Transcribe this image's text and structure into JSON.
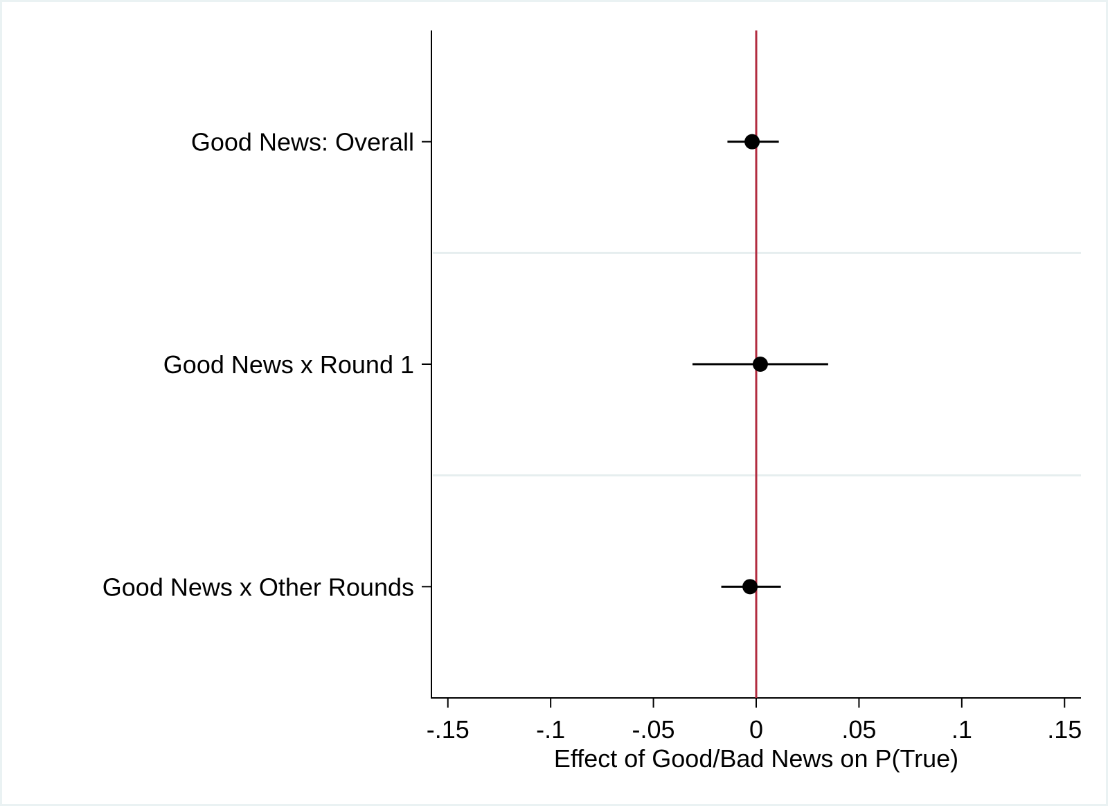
{
  "chart_data": {
    "type": "scatter",
    "title": "",
    "xlabel": "Effect of Good/Bad News on P(True)",
    "ylabel": "",
    "xlim": [
      -0.158,
      0.158
    ],
    "x_ticks": [
      {
        "value": -0.15,
        "label": "-.15"
      },
      {
        "value": -0.1,
        "label": "-.1"
      },
      {
        "value": -0.05,
        "label": "-.05"
      },
      {
        "value": 0,
        "label": "0"
      },
      {
        "value": 0.05,
        "label": ".05"
      },
      {
        "value": 0.1,
        "label": ".1"
      },
      {
        "value": 0.15,
        "label": ".15"
      }
    ],
    "categories": [
      "Good News: Overall",
      "Good News x Round 1",
      "Good News x Other Rounds"
    ],
    "points": [
      {
        "label": "Good News: Overall",
        "estimate": -0.002,
        "ci": [
          -0.014,
          0.011
        ]
      },
      {
        "label": "Good News x Round 1",
        "estimate": 0.002,
        "ci": [
          -0.031,
          0.035
        ]
      },
      {
        "label": "Good News x Other Rounds",
        "estimate": -0.003,
        "ci": [
          -0.017,
          0.012
        ]
      }
    ],
    "reference_line": {
      "x": 0,
      "color": "#b22c40"
    },
    "colors": {
      "marker": "#000000",
      "group_separator": "#e6eeef",
      "frame_border": "#eaf2f3"
    },
    "grid": false,
    "legend": "none"
  }
}
